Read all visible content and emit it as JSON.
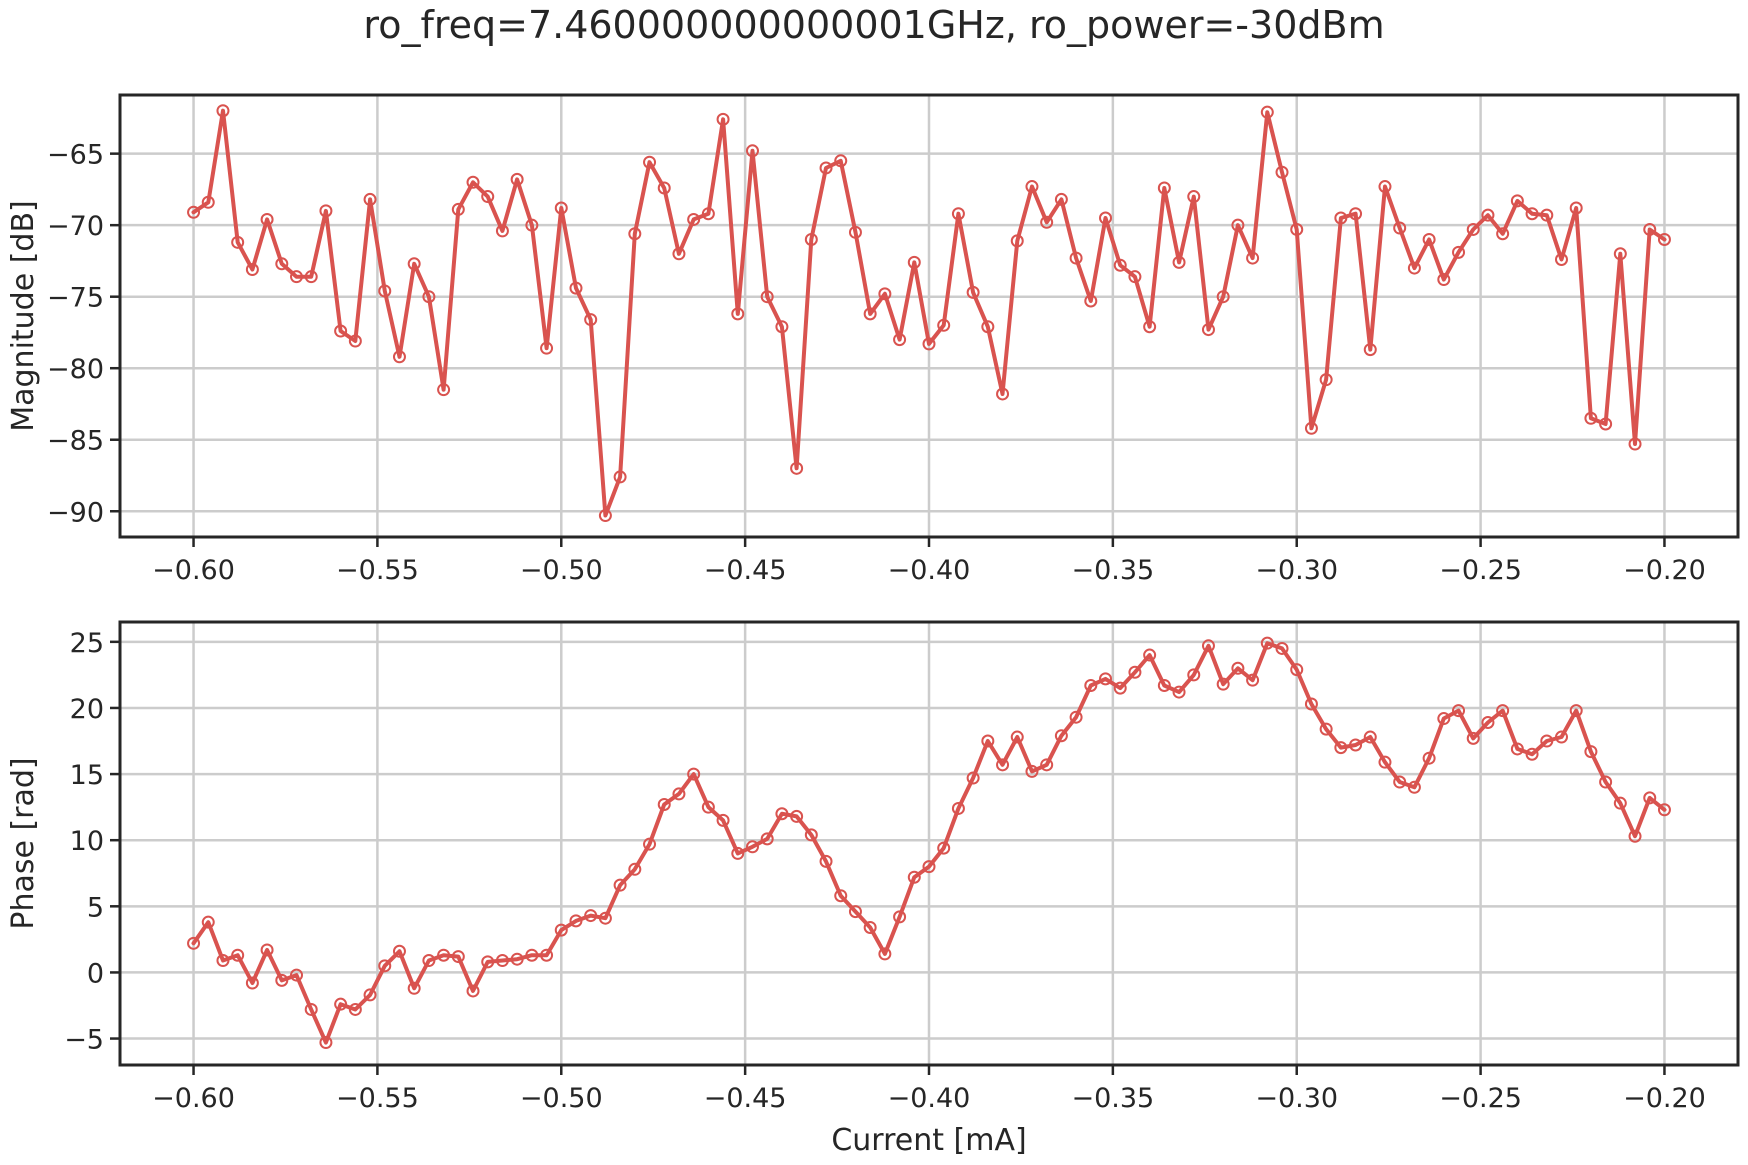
{
  "title": "ro_freq=7.460000000000001GHz, ro_power=-30dBm",
  "colors": {
    "series": "#d9534f",
    "grid": "#cccccc",
    "axes": "#262626",
    "text": "#262626"
  },
  "chart_data": [
    {
      "type": "line",
      "ylabel": "Magnitude [dB]",
      "xlabel": "",
      "xlim": [
        -0.62,
        -0.18
      ],
      "ylim": [
        -91.8,
        -60.9
      ],
      "xticks": [
        -0.6,
        -0.55,
        -0.5,
        -0.45,
        -0.4,
        -0.35,
        -0.3,
        -0.25,
        -0.2
      ],
      "xtick_labels": [
        "−0.60",
        "−0.55",
        "−0.50",
        "−0.45",
        "−0.40",
        "−0.35",
        "−0.30",
        "−0.25",
        "−0.20"
      ],
      "yticks": [
        -90,
        -85,
        -80,
        -75,
        -70,
        -65
      ],
      "ytick_labels": [
        "−90",
        "−85",
        "−80",
        "−75",
        "−70",
        "−65"
      ],
      "grid": true,
      "markers": "open-circle",
      "x": [
        -0.6,
        -0.596,
        -0.592,
        -0.588,
        -0.584,
        -0.58,
        -0.576,
        -0.572,
        -0.568,
        -0.564,
        -0.56,
        -0.556,
        -0.552,
        -0.548,
        -0.544,
        -0.54,
        -0.536,
        -0.532,
        -0.528,
        -0.524,
        -0.52,
        -0.516,
        -0.512,
        -0.508,
        -0.504,
        -0.5,
        -0.496,
        -0.492,
        -0.488,
        -0.484,
        -0.48,
        -0.476,
        -0.472,
        -0.468,
        -0.464,
        -0.46,
        -0.456,
        -0.452,
        -0.448,
        -0.444,
        -0.44,
        -0.436,
        -0.432,
        -0.428,
        -0.424,
        -0.42,
        -0.416,
        -0.412,
        -0.408,
        -0.404,
        -0.4,
        -0.396,
        -0.392,
        -0.388,
        -0.384,
        -0.38,
        -0.376,
        -0.372,
        -0.368,
        -0.364,
        -0.36,
        -0.356,
        -0.352,
        -0.348,
        -0.344,
        -0.34,
        -0.336,
        -0.332,
        -0.328,
        -0.324,
        -0.32,
        -0.316,
        -0.312,
        -0.308,
        -0.304,
        -0.3,
        -0.296,
        -0.292,
        -0.288,
        -0.284,
        -0.28,
        -0.276,
        -0.272,
        -0.268,
        -0.264,
        -0.26,
        -0.256,
        -0.252,
        -0.248,
        -0.244,
        -0.24,
        -0.236,
        -0.232,
        -0.228,
        -0.224,
        -0.22,
        -0.216,
        -0.212,
        -0.208,
        -0.204,
        -0.2
      ],
      "y": [
        -69.1,
        -68.4,
        -62.0,
        -71.2,
        -73.1,
        -69.6,
        -72.7,
        -73.6,
        -73.6,
        -69.0,
        -77.4,
        -78.1,
        -68.2,
        -74.6,
        -79.2,
        -72.7,
        -75.0,
        -81.5,
        -68.9,
        -67.0,
        -68.0,
        -70.4,
        -66.8,
        -70.0,
        -78.6,
        -68.8,
        -74.4,
        -76.6,
        -90.3,
        -87.6,
        -70.6,
        -65.6,
        -67.4,
        -72.0,
        -69.6,
        -69.2,
        -62.6,
        -76.2,
        -64.8,
        -75.0,
        -77.1,
        -87.0,
        -71.0,
        -66.0,
        -65.5,
        -70.5,
        -76.2,
        -74.8,
        -78.0,
        -72.6,
        -78.3,
        -77.0,
        -69.2,
        -74.7,
        -77.1,
        -81.8,
        -71.1,
        -67.3,
        -69.8,
        -68.2,
        -72.3,
        -75.3,
        -69.5,
        -72.8,
        -73.6,
        -77.1,
        -67.4,
        -72.6,
        -68.0,
        -77.3,
        -75.0,
        -70.0,
        -72.3,
        -62.1,
        -66.3,
        -70.3,
        -84.2,
        -80.8,
        -69.5,
        -69.2,
        -78.7,
        -67.3,
        -70.2,
        -73.0,
        -71.0,
        -73.8,
        -71.9,
        -70.3,
        -69.3,
        -70.6,
        -68.3,
        -69.2,
        -69.3,
        -72.4,
        -68.8,
        -83.5,
        -83.9,
        -72.0,
        -85.3,
        -70.3,
        -71.0
      ]
    },
    {
      "type": "line",
      "ylabel": "Phase [rad]",
      "xlabel": "Current [mA]",
      "xlim": [
        -0.62,
        -0.18
      ],
      "ylim": [
        -7.0,
        26.5
      ],
      "xticks": [
        -0.6,
        -0.55,
        -0.5,
        -0.45,
        -0.4,
        -0.35,
        -0.3,
        -0.25,
        -0.2
      ],
      "xtick_labels": [
        "−0.60",
        "−0.55",
        "−0.50",
        "−0.45",
        "−0.40",
        "−0.35",
        "−0.30",
        "−0.25",
        "−0.20"
      ],
      "yticks": [
        -5,
        0,
        5,
        10,
        15,
        20,
        25
      ],
      "ytick_labels": [
        "−5",
        "0",
        "5",
        "10",
        "15",
        "20",
        "25"
      ],
      "grid": true,
      "markers": "open-circle",
      "x": [
        -0.6,
        -0.596,
        -0.592,
        -0.588,
        -0.584,
        -0.58,
        -0.576,
        -0.572,
        -0.568,
        -0.564,
        -0.56,
        -0.556,
        -0.552,
        -0.548,
        -0.544,
        -0.54,
        -0.536,
        -0.532,
        -0.528,
        -0.524,
        -0.52,
        -0.516,
        -0.512,
        -0.508,
        -0.504,
        -0.5,
        -0.496,
        -0.492,
        -0.488,
        -0.484,
        -0.48,
        -0.476,
        -0.472,
        -0.468,
        -0.464,
        -0.46,
        -0.456,
        -0.452,
        -0.448,
        -0.444,
        -0.44,
        -0.436,
        -0.432,
        -0.428,
        -0.424,
        -0.42,
        -0.416,
        -0.412,
        -0.408,
        -0.404,
        -0.4,
        -0.396,
        -0.392,
        -0.388,
        -0.384,
        -0.38,
        -0.376,
        -0.372,
        -0.368,
        -0.364,
        -0.36,
        -0.356,
        -0.352,
        -0.348,
        -0.344,
        -0.34,
        -0.336,
        -0.332,
        -0.328,
        -0.324,
        -0.32,
        -0.316,
        -0.312,
        -0.308,
        -0.304,
        -0.3,
        -0.296,
        -0.292,
        -0.288,
        -0.284,
        -0.28,
        -0.276,
        -0.272,
        -0.268,
        -0.264,
        -0.26,
        -0.256,
        -0.252,
        -0.248,
        -0.244,
        -0.24,
        -0.236,
        -0.232,
        -0.228,
        -0.224,
        -0.22,
        -0.216,
        -0.212,
        -0.208,
        -0.204,
        -0.2
      ],
      "y": [
        2.2,
        3.8,
        0.9,
        1.3,
        -0.8,
        1.7,
        -0.6,
        -0.2,
        -2.8,
        -5.3,
        -2.4,
        -2.8,
        -1.7,
        0.5,
        1.6,
        -1.2,
        0.9,
        1.3,
        1.2,
        -1.4,
        0.8,
        0.9,
        1.0,
        1.3,
        1.3,
        3.2,
        3.9,
        4.3,
        4.1,
        6.6,
        7.8,
        9.7,
        12.7,
        13.5,
        15.0,
        12.5,
        11.5,
        9.0,
        9.5,
        10.1,
        12.0,
        11.8,
        10.4,
        8.4,
        5.8,
        4.6,
        3.4,
        1.4,
        4.2,
        7.2,
        8.0,
        9.4,
        12.4,
        14.7,
        17.5,
        15.7,
        17.8,
        15.2,
        15.7,
        17.9,
        19.3,
        21.7,
        22.2,
        21.5,
        22.7,
        24.0,
        21.7,
        21.2,
        22.5,
        24.7,
        21.8,
        23.0,
        22.1,
        24.9,
        24.5,
        22.9,
        20.3,
        18.4,
        17.0,
        17.2,
        17.8,
        15.9,
        14.4,
        14.0,
        16.2,
        19.2,
        19.8,
        17.7,
        18.9,
        19.8,
        16.9,
        16.5,
        17.5,
        17.8,
        19.8,
        16.7,
        14.4,
        12.8,
        10.3,
        13.2,
        12.3
      ]
    }
  ]
}
